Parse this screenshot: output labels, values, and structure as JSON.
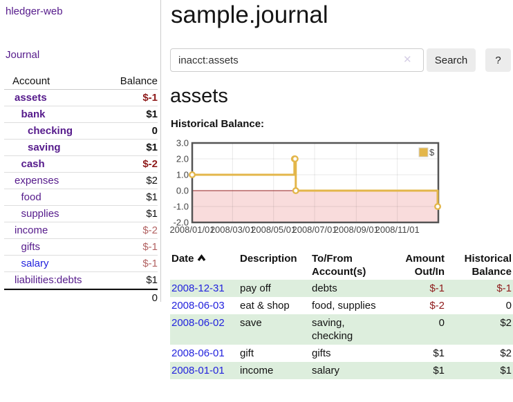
{
  "sidebar": {
    "app_title": "hledger-web",
    "journal_link": "Journal",
    "accounts_table": {
      "headers": {
        "account": "Account",
        "balance": "Balance"
      },
      "rows": [
        {
          "name": "assets",
          "indent": 0,
          "bold": true,
          "balance": "$-1"
        },
        {
          "name": "bank",
          "indent": 1,
          "bold": true,
          "balance": "$1"
        },
        {
          "name": "checking",
          "indent": 2,
          "bold": true,
          "balance": "0"
        },
        {
          "name": "saving",
          "indent": 2,
          "bold": true,
          "balance": "$1"
        },
        {
          "name": "cash",
          "indent": 1,
          "bold": true,
          "balance": "$-2"
        },
        {
          "name": "expenses",
          "indent": 0,
          "bold": false,
          "balance": "$2"
        },
        {
          "name": "food",
          "indent": 1,
          "bold": false,
          "balance": "$1"
        },
        {
          "name": "supplies",
          "indent": 1,
          "bold": false,
          "balance": "$1"
        },
        {
          "name": "income",
          "indent": 0,
          "bold": false,
          "balance": "$-2"
        },
        {
          "name": "gifts",
          "indent": 1,
          "bold": false,
          "balance": "$-1"
        },
        {
          "name": "salary",
          "indent": 1,
          "bold": false,
          "balance": "$-1",
          "link_color": "blue"
        },
        {
          "name": "liabilities:debts",
          "indent": 0,
          "bold": false,
          "balance": "$1"
        }
      ],
      "total": "0"
    }
  },
  "main": {
    "title": "sample.journal",
    "search": {
      "value": "inacct:assets",
      "clear_icon": "✕",
      "button": "Search",
      "help_button": "?"
    },
    "section_title": "assets",
    "chart_label": "Historical Balance:"
  },
  "chart_data": {
    "type": "line",
    "title": "Historical Balance:",
    "step": true,
    "series": [
      {
        "name": "$",
        "color": "#e3b64a",
        "points": [
          [
            "2008-01-01",
            1
          ],
          [
            "2008-06-01",
            2
          ],
          [
            "2008-06-02",
            2
          ],
          [
            "2008-06-03",
            0
          ],
          [
            "2008-12-31",
            -1
          ]
        ]
      }
    ],
    "x_range": [
      "2008-01-01",
      "2009-01-01"
    ],
    "ylim": [
      -2,
      3
    ],
    "y_ticks": [
      3.0,
      2.0,
      1.0,
      0.0,
      -1.0,
      -2.0
    ],
    "x_ticks": [
      "2008/01/01",
      "2008/03/01",
      "2008/05/01",
      "2008/07/01",
      "2008/09/01",
      "2008/11/01"
    ],
    "grid": true,
    "legend_position": "top-right",
    "legend_label": "$",
    "negative_region_color": "#f9dcdc",
    "zero_line_color": "#941f1f"
  },
  "transactions": {
    "headers": {
      "date": "Date",
      "description": "Description",
      "accounts": "To/From\nAccount(s)",
      "amount": "Amount\nOut/In",
      "balance": "Historical\nBalance"
    },
    "rows": [
      {
        "date": "2008-12-31",
        "description": "pay off",
        "accounts": "debts",
        "amount": "$-1",
        "balance": "$-1"
      },
      {
        "date": "2008-06-03",
        "description": "eat & shop",
        "accounts": "food, supplies",
        "amount": "$-2",
        "balance": "0"
      },
      {
        "date": "2008-06-02",
        "description": "save",
        "accounts": "saving,\nchecking",
        "amount": "0",
        "balance": "$2"
      },
      {
        "date": "2008-06-01",
        "description": "gift",
        "accounts": "gifts",
        "amount": "$1",
        "balance": "$2"
      },
      {
        "date": "2008-01-01",
        "description": "income",
        "accounts": "salary",
        "amount": "$1",
        "balance": "$1"
      }
    ]
  },
  "colors": {
    "link_purple": "#551a8b",
    "link_blue": "#2222dd",
    "negative_strong": "#8e1a1a",
    "negative_soft": "#b26262",
    "row_stripe_green": "#ddeedd",
    "chart_line_gold": "#e3b64a",
    "chart_negative_fill": "#f9dcdc",
    "chart_zero_line": "#941f1f"
  }
}
